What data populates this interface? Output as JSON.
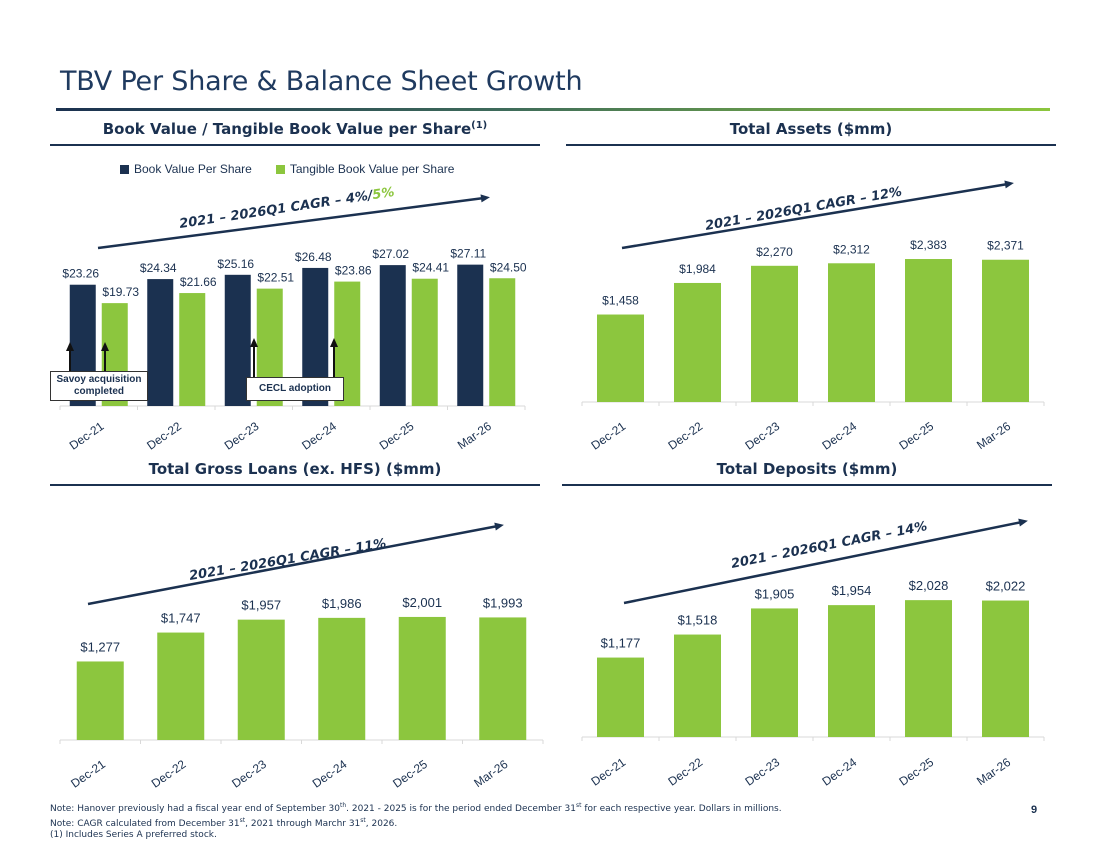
{
  "slide": {
    "title": "TBV Per Share & Balance Sheet Growth",
    "page_number": "9",
    "notes": [
      {
        "pre": "Note: Hanover previously had a fiscal year end of September 30",
        "sup1": "th",
        "mid": ". 2021 - 2025 is for the period ended December 31",
        "sup2": "st",
        "post": " for each respective year. Dollars in millions."
      },
      {
        "pre": "Note: CAGR calculated from December 31",
        "sup1": "st",
        "mid": ", 2021 through Marchr 31",
        "sup2": "st",
        "post": ", 2026."
      },
      {
        "pre": "(1) Includes Series A preferred stock.",
        "sup1": "",
        "mid": "",
        "sup2": "",
        "post": ""
      }
    ]
  },
  "colors": {
    "navy": "#1b3150",
    "green": "#8cc63e"
  },
  "chart_data": [
    {
      "type": "bar",
      "title": "Book Value / Tangible Book Value per Share",
      "title_sup": "(1)",
      "categories": [
        "Dec-21",
        "Dec-22",
        "Dec-23",
        "Dec-24",
        "Dec-25",
        "Mar-26"
      ],
      "series": [
        {
          "name": "Book Value Per Share",
          "values": [
            23.26,
            24.34,
            25.16,
            26.48,
            27.02,
            27.11
          ],
          "labels": [
            "$23.26",
            "$24.34",
            "$25.16",
            "$26.48",
            "$27.02",
            "$27.11"
          ],
          "color": "#1b3150"
        },
        {
          "name": "Tangible Book Value per Share",
          "values": [
            19.73,
            21.66,
            22.51,
            23.86,
            24.41,
            24.5
          ],
          "labels": [
            "$19.73",
            "$21.66",
            "$22.51",
            "$23.86",
            "$24.41",
            "$24.50"
          ],
          "color": "#8cc63e"
        }
      ],
      "legend": "top-left",
      "cagr": {
        "text": "2021 – 2026Q1 CAGR – 4%/",
        "highlight": "5%"
      },
      "annotations": [
        {
          "text_lines": [
            "Savoy acquisition",
            "completed"
          ],
          "category": "Dec-21"
        },
        {
          "text_lines": [
            "CECL adoption"
          ],
          "category": "Dec-23"
        }
      ]
    },
    {
      "type": "bar",
      "title": "Total Assets ($mm)",
      "categories": [
        "Dec-21",
        "Dec-22",
        "Dec-23",
        "Dec-24",
        "Dec-25",
        "Mar-26"
      ],
      "values": [
        1458,
        1984,
        2270,
        2312,
        2383,
        2371
      ],
      "labels": [
        "$1,458",
        "$1,984",
        "$2,270",
        "$2,312",
        "$2,383",
        "$2,371"
      ],
      "cagr": {
        "text": "2021 – 2026Q1 CAGR – 12%"
      }
    },
    {
      "type": "bar",
      "title": "Total Gross Loans (ex. HFS) ($mm)",
      "categories": [
        "Dec-21",
        "Dec-22",
        "Dec-23",
        "Dec-24",
        "Dec-25",
        "Mar-26"
      ],
      "values": [
        1277,
        1747,
        1957,
        1986,
        2001,
        1993
      ],
      "labels": [
        "$1,277",
        "$1,747",
        "$1,957",
        "$1,986",
        "$2,001",
        "$1,993"
      ],
      "cagr": {
        "text": "2021 – 2026Q1 CAGR – 11%"
      }
    },
    {
      "type": "bar",
      "title": "Total Deposits ($mm)",
      "categories": [
        "Dec-21",
        "Dec-22",
        "Dec-23",
        "Dec-24",
        "Dec-25",
        "Mar-26"
      ],
      "values": [
        1177,
        1518,
        1905,
        1954,
        2028,
        2022
      ],
      "labels": [
        "$1,177",
        "$1,518",
        "$1,905",
        "$1,954",
        "$2,028",
        "$2,022"
      ],
      "cagr": {
        "text": "2021 – 2026Q1 CAGR – 14%"
      }
    }
  ]
}
